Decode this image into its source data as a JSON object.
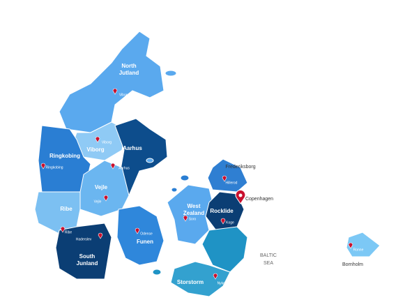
{
  "regions": [
    {
      "name": "North Jutland"
    },
    {
      "name": "Viborg"
    },
    {
      "name": "Aarhus"
    },
    {
      "name": "Ringkobing"
    },
    {
      "name": "Vejle"
    },
    {
      "name": "Ribe"
    },
    {
      "name": "South Junland"
    },
    {
      "name": "Funen"
    },
    {
      "name": "Frederiksborg"
    },
    {
      "name": "West Zealand"
    },
    {
      "name": "Rocklide"
    },
    {
      "name": "Storstorm"
    },
    {
      "name": "Bornholm"
    }
  ],
  "cities": [
    {
      "label": "Viborg"
    },
    {
      "label": "Viborg"
    },
    {
      "label": "Aarhus"
    },
    {
      "label": "Ringkobing"
    },
    {
      "label": "Vejle"
    },
    {
      "label": "Ribe"
    },
    {
      "label": "Haderslev"
    },
    {
      "label": "Odense"
    },
    {
      "label": "Hillerod"
    },
    {
      "label": "Soro"
    },
    {
      "label": "Koge"
    },
    {
      "label": "Nykobing"
    },
    {
      "label": "Ronne"
    }
  ],
  "capital": "Copenhagen",
  "sea_label": [
    "BALTIC",
    "SEA"
  ]
}
